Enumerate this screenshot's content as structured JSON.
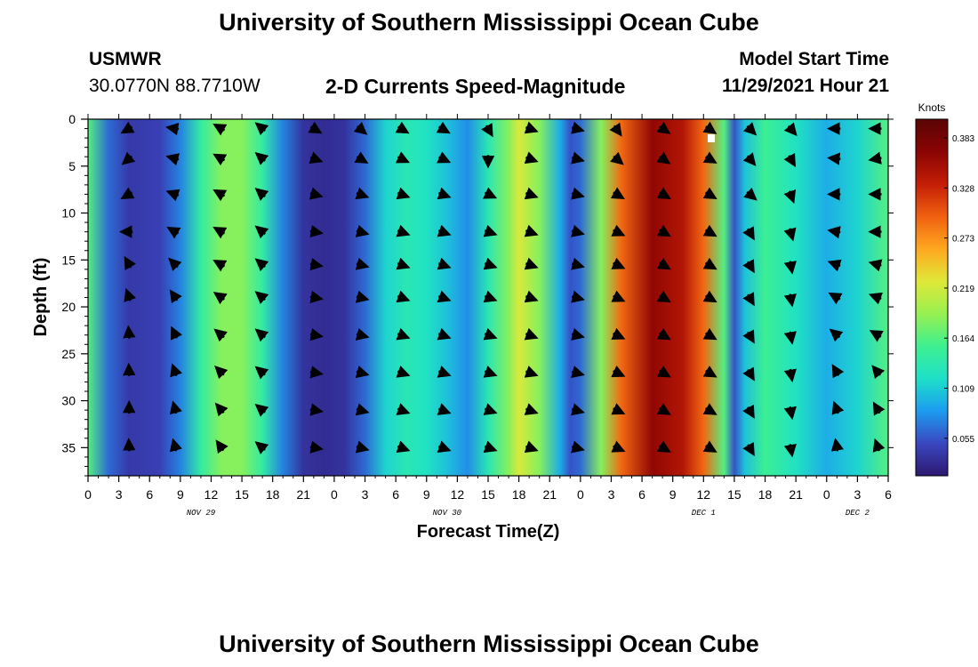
{
  "header": {
    "title": "University of Southern Mississippi Ocean Cube",
    "station": "USMWR",
    "coordinates": "30.0770N  88.7710W",
    "subtitle": "2-D Currents Speed-Magnitude",
    "model_start_label": "Model Start Time",
    "model_start_value": "11/29/2021 Hour 21"
  },
  "footer": {
    "title": "University of Southern Mississippi Ocean Cube"
  },
  "chart_data": {
    "type": "heatmap",
    "title": "2-D Currents Speed-Magnitude",
    "xlabel": "Forecast Time(Z)",
    "ylabel": "Depth (ft)",
    "xlim": [
      0,
      78
    ],
    "ylim": [
      0,
      38
    ],
    "x_tick_values": [
      0,
      3,
      6,
      9,
      12,
      15,
      18,
      21,
      24,
      27,
      30,
      33,
      36,
      39,
      42,
      45,
      48,
      51,
      54,
      57,
      60,
      63,
      66,
      69,
      72,
      75,
      78
    ],
    "x_tick_labels": [
      "0",
      "3",
      "6",
      "9",
      "12",
      "15",
      "18",
      "21",
      "0",
      "3",
      "6",
      "9",
      "12",
      "15",
      "18",
      "21",
      "0",
      "3",
      "6",
      "9",
      "12",
      "15",
      "18",
      "21",
      "0",
      "3",
      "6"
    ],
    "y_ticks": [
      0,
      5,
      10,
      15,
      20,
      25,
      30,
      35
    ],
    "date_labels": [
      {
        "text": "NOV 29",
        "x": 11
      },
      {
        "text": "NOV 30",
        "x": 35
      },
      {
        "text": "DEC 1",
        "x": 60
      },
      {
        "text": "DEC 2",
        "x": 75
      }
    ],
    "colorbar": {
      "label": "Knots",
      "range": [
        0.02,
        0.41
      ],
      "ticks": [
        "0.383",
        "0.328",
        "0.273",
        "0.219",
        "0.164",
        "0.109",
        "0.055"
      ],
      "stops": [
        "#2c1870",
        "#3a47c0",
        "#1c9cf0",
        "#1ee0c8",
        "#3ef090",
        "#98f050",
        "#dfe838",
        "#ffa820",
        "#f06010",
        "#c41e06",
        "#8a0404",
        "#5a0404"
      ]
    },
    "speed_profile": [
      {
        "hour": 0,
        "value": 0.17
      },
      {
        "hour": 2,
        "value": 0.07
      },
      {
        "hour": 4,
        "value": 0.045
      },
      {
        "hour": 7,
        "value": 0.05
      },
      {
        "hour": 9,
        "value": 0.08
      },
      {
        "hour": 11,
        "value": 0.15
      },
      {
        "hour": 13,
        "value": 0.19
      },
      {
        "hour": 15,
        "value": 0.19
      },
      {
        "hour": 17,
        "value": 0.15
      },
      {
        "hour": 19,
        "value": 0.08
      },
      {
        "hour": 21,
        "value": 0.04
      },
      {
        "hour": 23,
        "value": 0.035
      },
      {
        "hour": 25,
        "value": 0.04
      },
      {
        "hour": 27,
        "value": 0.07
      },
      {
        "hour": 29,
        "value": 0.12
      },
      {
        "hour": 31,
        "value": 0.14
      },
      {
        "hour": 33,
        "value": 0.13
      },
      {
        "hour": 35,
        "value": 0.11
      },
      {
        "hour": 37,
        "value": 0.085
      },
      {
        "hour": 39,
        "value": 0.14
      },
      {
        "hour": 41,
        "value": 0.19
      },
      {
        "hour": 42,
        "value": 0.23
      },
      {
        "hour": 44,
        "value": 0.19
      },
      {
        "hour": 46,
        "value": 0.1
      },
      {
        "hour": 47,
        "value": 0.06
      },
      {
        "hour": 48,
        "value": 0.07
      },
      {
        "hour": 50,
        "value": 0.19
      },
      {
        "hour": 52,
        "value": 0.3
      },
      {
        "hour": 55,
        "value": 0.37
      },
      {
        "hour": 58,
        "value": 0.35
      },
      {
        "hour": 60,
        "value": 0.3
      },
      {
        "hour": 62,
        "value": 0.17
      },
      {
        "hour": 63,
        "value": 0.06
      },
      {
        "hour": 64,
        "value": 0.11
      },
      {
        "hour": 66,
        "value": 0.16
      },
      {
        "hour": 69,
        "value": 0.13
      },
      {
        "hour": 72,
        "value": 0.1
      },
      {
        "hour": 75,
        "value": 0.12
      },
      {
        "hour": 78,
        "value": 0.17
      }
    ],
    "arrow_columns": [
      {
        "hour": 4,
        "angles": [
          210,
          220,
          210,
          180,
          120,
          110,
          95,
          92,
          90,
          92
        ]
      },
      {
        "hour": 8.5,
        "angles": [
          170,
          165,
          160,
          150,
          135,
          125,
          115,
          110,
          105,
          105
        ]
      },
      {
        "hour": 13,
        "angles": [
          150,
          150,
          150,
          150,
          150,
          145,
          140,
          135,
          130,
          125
        ]
      },
      {
        "hour": 17,
        "angles": [
          140,
          140,
          140,
          140,
          140,
          140,
          140,
          140,
          140,
          140
        ]
      },
      {
        "hour": 22,
        "angles": [
          -30,
          -20,
          -15,
          -10,
          -10,
          -10,
          -10,
          -10,
          -10,
          -10
        ]
      },
      {
        "hour": 26.5,
        "angles": [
          -40,
          -30,
          -20,
          -15,
          -15,
          -15,
          -15,
          -15,
          -15,
          -15
        ]
      },
      {
        "hour": 30.5,
        "angles": [
          -30,
          -25,
          -20,
          -20,
          -20,
          -20,
          -20,
          -20,
          -20,
          -20
        ]
      },
      {
        "hour": 34.5,
        "angles": [
          -30,
          -25,
          -20,
          -20,
          -20,
          -20,
          -20,
          -20,
          -20,
          -20
        ]
      },
      {
        "hour": 39,
        "angles": [
          -60,
          -90,
          -25,
          -20,
          -20,
          -20,
          -20,
          -20,
          -20,
          -20
        ]
      },
      {
        "hour": 43,
        "angles": [
          -20,
          -20,
          -20,
          -20,
          -20,
          -20,
          -20,
          -20,
          -20,
          -20
        ]
      },
      {
        "hour": 47.5,
        "angles": [
          -15,
          -15,
          -15,
          -15,
          -15,
          -15,
          -15,
          -15,
          -15,
          -15
        ]
      },
      {
        "hour": 51.5,
        "angles": [
          -55,
          -40,
          -30,
          -25,
          -25,
          -25,
          -25,
          -25,
          -25,
          -25
        ]
      },
      {
        "hour": 56,
        "angles": [
          -35,
          -35,
          -30,
          -30,
          -30,
          -30,
          -30,
          -30,
          -30,
          -30
        ]
      },
      {
        "hour": 60.5,
        "angles": [
          -35,
          -30,
          -30,
          -30,
          -30,
          -30,
          -30,
          -30,
          -30,
          -30
        ]
      },
      {
        "hour": 64.5,
        "angles": [
          -45,
          -50,
          -40,
          -60,
          -60,
          -60,
          -60,
          -60,
          -60,
          -60
        ]
      },
      {
        "hour": 68.5,
        "angles": [
          -50,
          -60,
          -70,
          -75,
          -80,
          -80,
          -80,
          -80,
          -80,
          -80
        ]
      },
      {
        "hour": 73,
        "angles": [
          180,
          175,
          180,
          170,
          160,
          150,
          140,
          120,
          110,
          100
        ]
      },
      {
        "hour": 77,
        "angles": [
          180,
          190,
          180,
          180,
          165,
          160,
          150,
          130,
          120,
          110
        ]
      }
    ]
  }
}
